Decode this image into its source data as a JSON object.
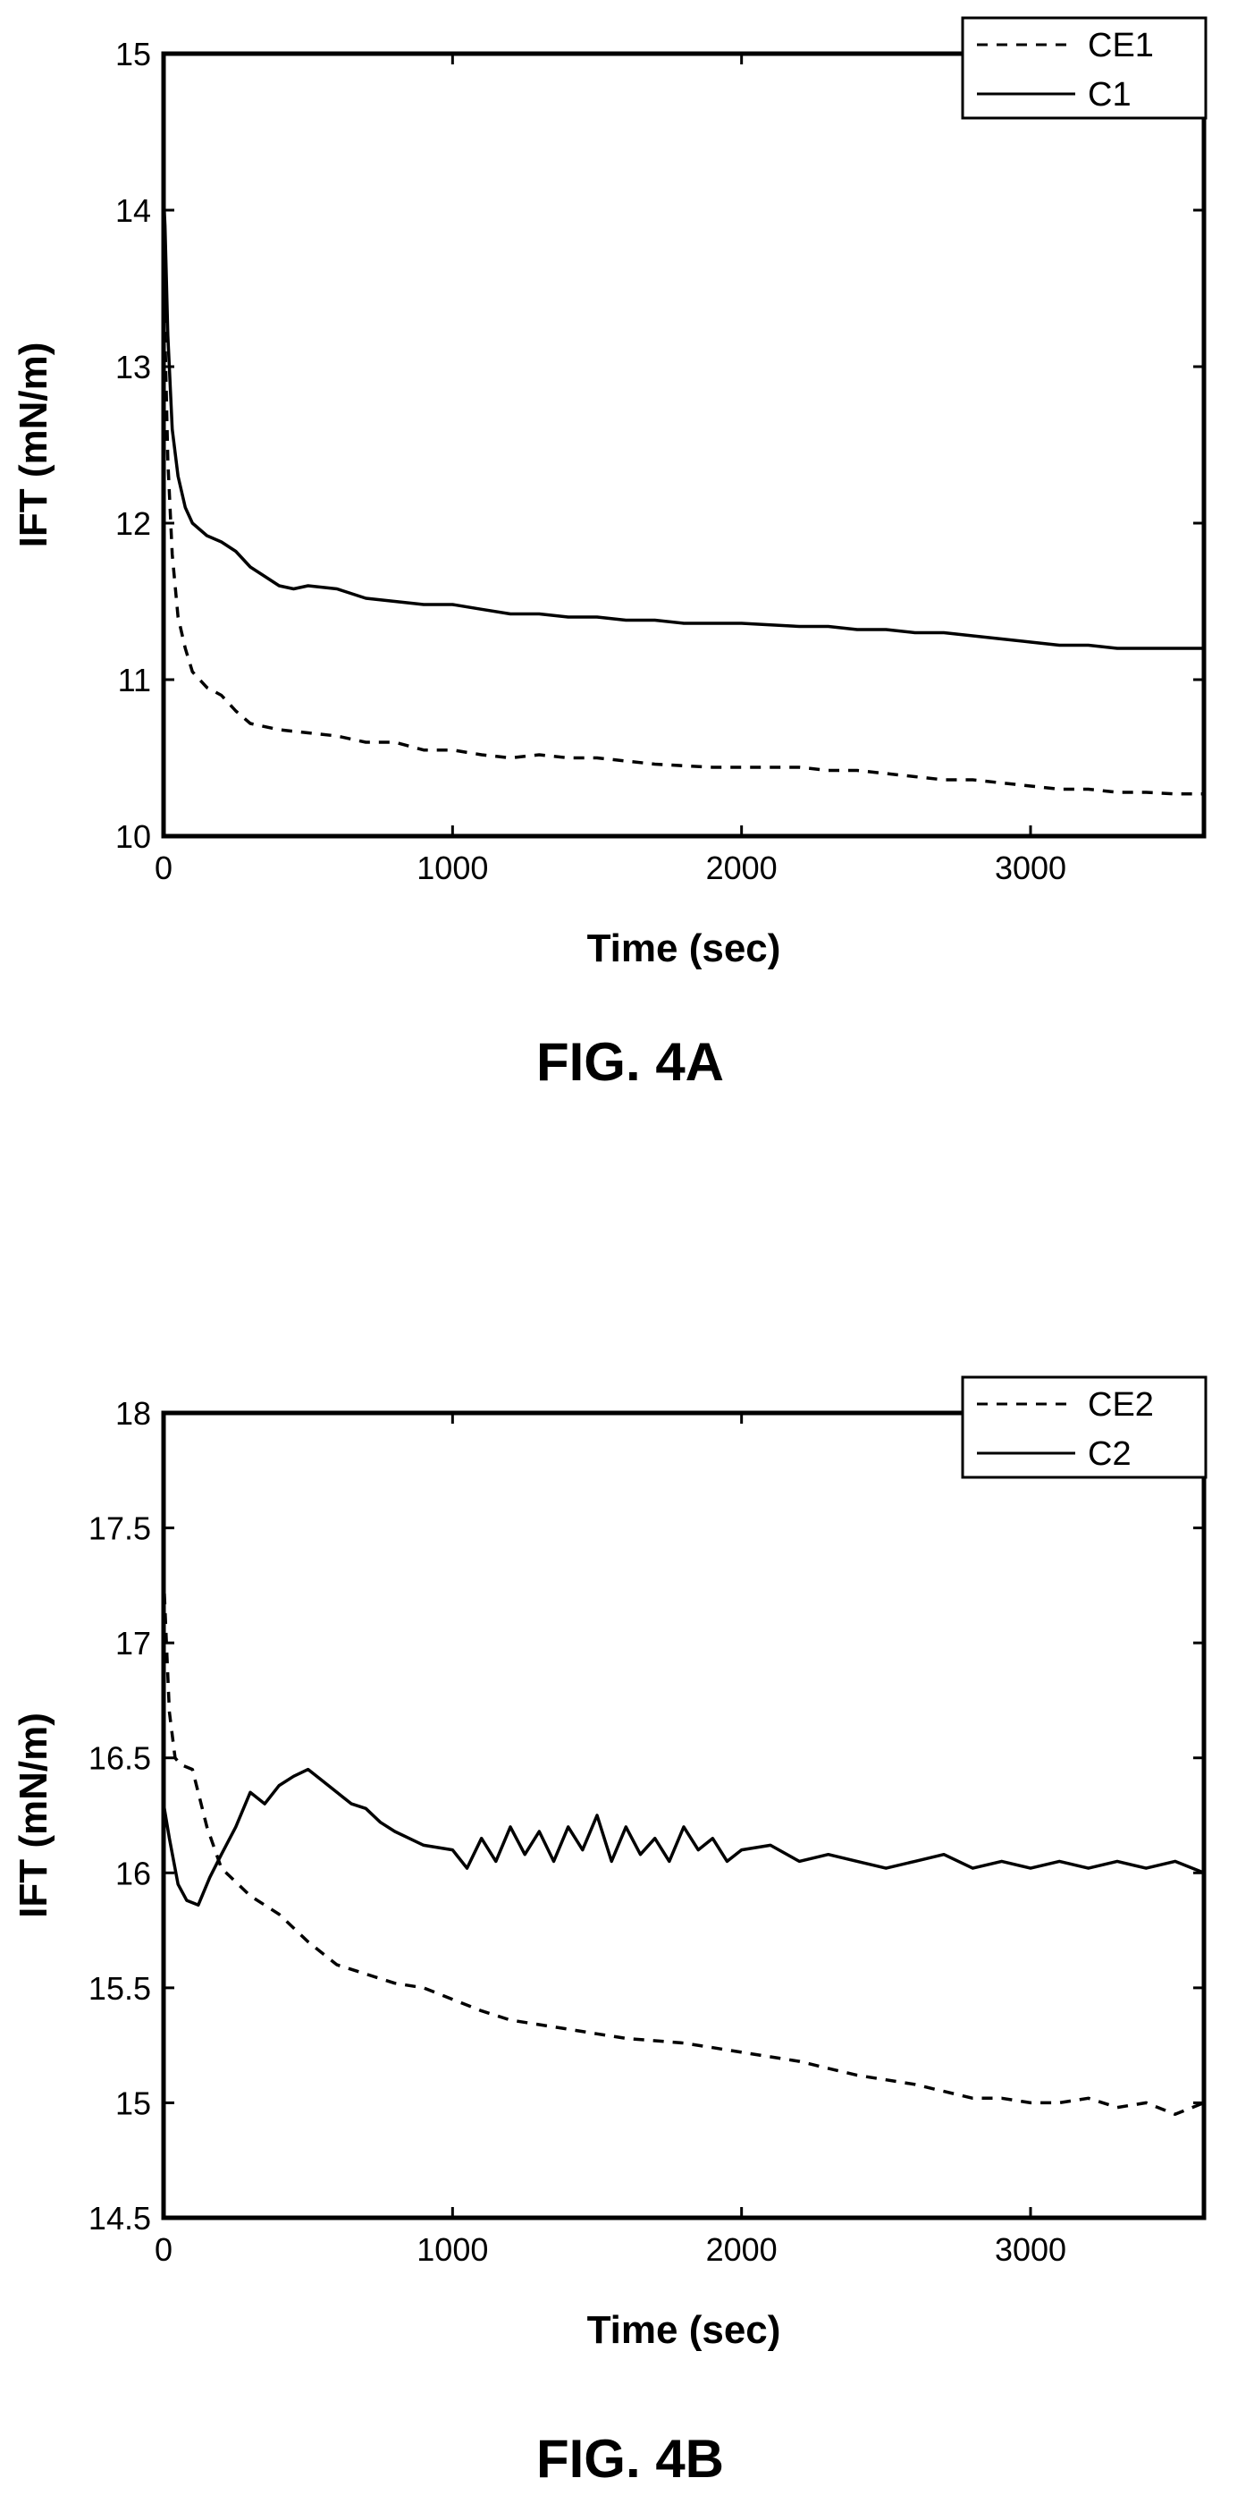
{
  "chart_data": [
    {
      "type": "line",
      "caption": "FIG. 4A",
      "xlabel": "Time (sec)",
      "ylabel": "IFT (mN/m)",
      "xlim": [
        0,
        3600
      ],
      "ylim": [
        10,
        15
      ],
      "xticks": [
        0,
        1000,
        2000,
        3000
      ],
      "yticks": [
        10,
        11,
        12,
        13,
        14,
        15
      ],
      "grid": false,
      "legend_position": "top-right",
      "series": [
        {
          "name": "CE1",
          "style": "dashed",
          "color": "#000000",
          "x": [
            0,
            15,
            30,
            50,
            75,
            100,
            150,
            200,
            250,
            300,
            400,
            500,
            600,
            700,
            800,
            900,
            1000,
            1100,
            1200,
            1300,
            1400,
            1500,
            1600,
            1700,
            1800,
            1900,
            2000,
            2100,
            2200,
            2300,
            2400,
            2500,
            2600,
            2700,
            2800,
            2900,
            3000,
            3100,
            3200,
            3300,
            3400,
            3500,
            3600
          ],
          "y": [
            13.6,
            12.4,
            11.8,
            11.4,
            11.2,
            11.05,
            10.95,
            10.9,
            10.8,
            10.72,
            10.68,
            10.66,
            10.64,
            10.6,
            10.6,
            10.55,
            10.55,
            10.52,
            10.5,
            10.52,
            10.5,
            10.5,
            10.48,
            10.46,
            10.45,
            10.44,
            10.44,
            10.44,
            10.44,
            10.42,
            10.42,
            10.4,
            10.38,
            10.36,
            10.36,
            10.34,
            10.32,
            10.3,
            10.3,
            10.28,
            10.28,
            10.27,
            10.27
          ]
        },
        {
          "name": "C1",
          "style": "solid",
          "color": "#000000",
          "x": [
            0,
            5,
            15,
            30,
            50,
            75,
            100,
            150,
            200,
            250,
            300,
            350,
            400,
            450,
            500,
            600,
            700,
            800,
            900,
            1000,
            1100,
            1200,
            1300,
            1400,
            1500,
            1600,
            1700,
            1800,
            1900,
            2000,
            2100,
            2200,
            2300,
            2400,
            2500,
            2600,
            2700,
            2800,
            2900,
            3000,
            3100,
            3200,
            3300,
            3400,
            3500,
            3600
          ],
          "y": [
            14.1,
            13.9,
            13.2,
            12.6,
            12.3,
            12.1,
            12.0,
            11.92,
            11.88,
            11.82,
            11.72,
            11.66,
            11.6,
            11.58,
            11.6,
            11.58,
            11.52,
            11.5,
            11.48,
            11.48,
            11.45,
            11.42,
            11.42,
            11.4,
            11.4,
            11.38,
            11.38,
            11.36,
            11.36,
            11.36,
            11.35,
            11.34,
            11.34,
            11.32,
            11.32,
            11.3,
            11.3,
            11.28,
            11.26,
            11.24,
            11.22,
            11.22,
            11.2,
            11.2,
            11.2,
            11.2
          ]
        }
      ]
    },
    {
      "type": "line",
      "caption": "FIG. 4B",
      "xlabel": "Time (sec)",
      "ylabel": "IFT (mN/m)",
      "xlim": [
        0,
        3600
      ],
      "ylim": [
        14.5,
        18
      ],
      "xticks": [
        0,
        1000,
        2000,
        3000
      ],
      "yticks": [
        14.5,
        15,
        15.5,
        16,
        16.5,
        17,
        17.5,
        18
      ],
      "grid": false,
      "legend_position": "top-right",
      "series": [
        {
          "name": "CE2",
          "style": "dashed",
          "color": "#000000",
          "x": [
            0,
            10,
            20,
            40,
            60,
            100,
            150,
            200,
            300,
            400,
            500,
            600,
            700,
            800,
            900,
            1000,
            1100,
            1200,
            1300,
            1400,
            1500,
            1600,
            1700,
            1800,
            1900,
            2000,
            2100,
            2200,
            2300,
            2400,
            2500,
            2600,
            2700,
            2800,
            2900,
            3000,
            3100,
            3200,
            3300,
            3400,
            3500,
            3600
          ],
          "y": [
            17.3,
            17.0,
            16.7,
            16.5,
            16.47,
            16.45,
            16.2,
            16.02,
            15.9,
            15.82,
            15.7,
            15.6,
            15.56,
            15.52,
            15.5,
            15.45,
            15.4,
            15.36,
            15.34,
            15.32,
            15.3,
            15.28,
            15.27,
            15.26,
            15.24,
            15.22,
            15.2,
            15.18,
            15.15,
            15.12,
            15.1,
            15.08,
            15.05,
            15.02,
            15.02,
            15.0,
            15.0,
            15.02,
            14.98,
            15.0,
            14.95,
            15.0
          ]
        },
        {
          "name": "C2",
          "style": "solid",
          "color": "#000000",
          "x": [
            0,
            20,
            50,
            80,
            120,
            160,
            200,
            250,
            300,
            350,
            400,
            450,
            500,
            550,
            600,
            650,
            700,
            750,
            800,
            850,
            900,
            1000,
            1050,
            1100,
            1150,
            1200,
            1250,
            1300,
            1350,
            1400,
            1450,
            1500,
            1550,
            1600,
            1650,
            1700,
            1750,
            1800,
            1850,
            1900,
            1950,
            2000,
            2100,
            2200,
            2300,
            2400,
            2500,
            2600,
            2700,
            2800,
            2900,
            3000,
            3100,
            3200,
            3300,
            3400,
            3500,
            3600
          ],
          "y": [
            16.3,
            16.15,
            15.95,
            15.88,
            15.86,
            15.98,
            16.08,
            16.2,
            16.35,
            16.3,
            16.38,
            16.42,
            16.45,
            16.4,
            16.35,
            16.3,
            16.28,
            16.22,
            16.18,
            16.15,
            16.12,
            16.1,
            16.02,
            16.15,
            16.05,
            16.2,
            16.08,
            16.18,
            16.05,
            16.2,
            16.1,
            16.25,
            16.05,
            16.2,
            16.08,
            16.15,
            16.05,
            16.2,
            16.1,
            16.15,
            16.05,
            16.1,
            16.12,
            16.05,
            16.08,
            16.05,
            16.02,
            16.05,
            16.08,
            16.02,
            16.05,
            16.02,
            16.05,
            16.02,
            16.05,
            16.02,
            16.05,
            16.0
          ]
        }
      ]
    }
  ]
}
